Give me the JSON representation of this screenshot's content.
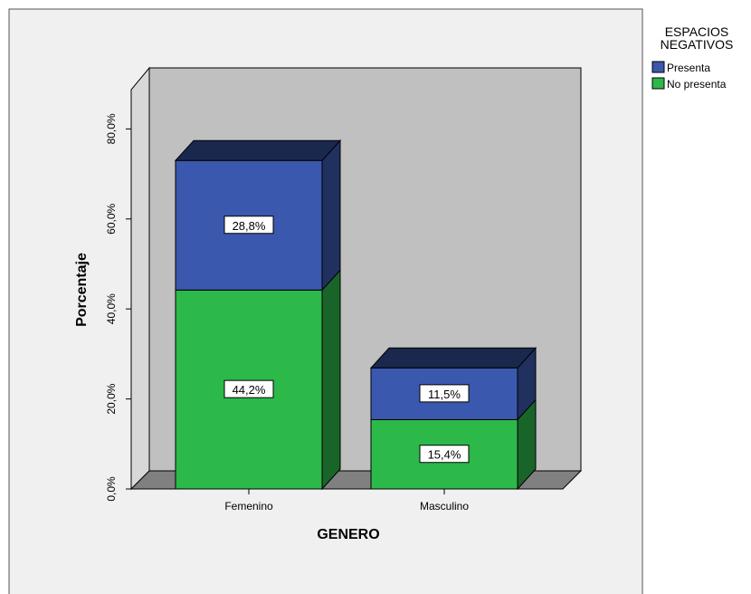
{
  "chart_data": {
    "type": "bar",
    "stacked": true,
    "three_d": true,
    "title": "",
    "xlabel": "GENERO",
    "ylabel": "Porcentaje",
    "ylim": [
      0,
      80
    ],
    "yticks": [
      "0,0%",
      "20,0%",
      "40,0%",
      "60,0%",
      "80,0%"
    ],
    "categories": [
      "Femenino",
      "Masculino"
    ],
    "legend": {
      "title": "ESPACIOS NEGATIVOS",
      "placement": "right"
    },
    "series": [
      {
        "name": "No presenta",
        "values": [
          44.2,
          15.4
        ],
        "labels": [
          "44,2%",
          "15,4%"
        ],
        "color": "#2db84a"
      },
      {
        "name": "Presenta",
        "values": [
          28.8,
          11.5
        ],
        "labels": [
          "28,8%",
          "11,5%"
        ],
        "color": "#3a58ad"
      }
    ],
    "grid": false,
    "colors": {
      "back_wall": "#c0c0c0",
      "floor": "#808080",
      "plot_background": "#f0f0f0"
    }
  }
}
